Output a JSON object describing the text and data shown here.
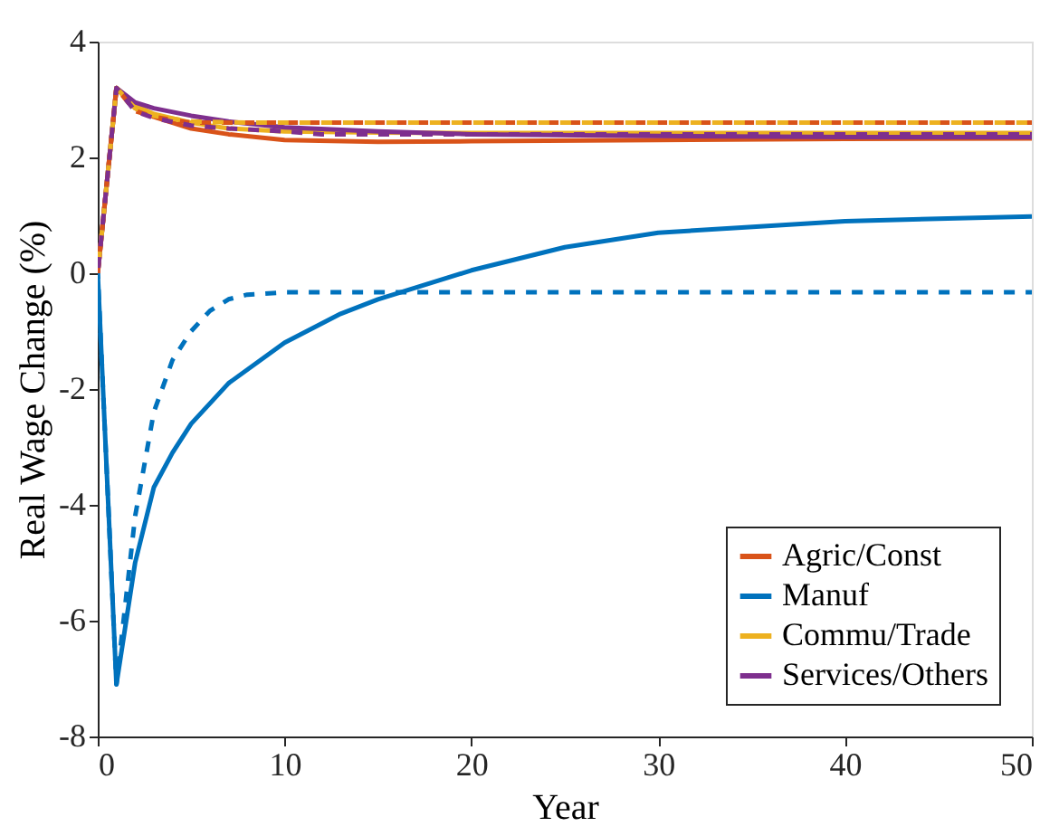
{
  "chart_data": {
    "type": "line",
    "xlabel": "Year",
    "ylabel": "Real Wage Change (%)",
    "xlim": [
      0,
      50
    ],
    "ylim": [
      -8,
      4
    ],
    "xticks": [
      0,
      10,
      20,
      30,
      40,
      50
    ],
    "yticks": [
      -8,
      -6,
      -4,
      -2,
      0,
      2,
      4
    ],
    "grid": false,
    "legend": "bottom right",
    "series": [
      {
        "name": "Agric/Const",
        "color": "#d95319",
        "line_style": "solid",
        "x": [
          0,
          1,
          2,
          3,
          5,
          7,
          10,
          15,
          20,
          30,
          40,
          50
        ],
        "values": [
          0,
          3.2,
          2.85,
          2.7,
          2.5,
          2.4,
          2.3,
          2.27,
          2.28,
          2.3,
          2.32,
          2.33
        ]
      },
      {
        "name": "Manuf",
        "color": "#0072bd",
        "line_style": "solid",
        "x": [
          0,
          1,
          2,
          3,
          4,
          5,
          7,
          10,
          13,
          15,
          20,
          25,
          30,
          40,
          50
        ],
        "values": [
          0,
          -7.1,
          -5.0,
          -3.7,
          -3.1,
          -2.6,
          -1.9,
          -1.2,
          -0.7,
          -0.45,
          0.05,
          0.45,
          0.7,
          0.9,
          0.98
        ]
      },
      {
        "name": "Commu/Trade",
        "color": "#edb120",
        "line_style": "solid",
        "x": [
          0,
          1,
          2,
          3,
          5,
          7,
          10,
          15,
          20,
          30,
          40,
          50
        ],
        "values": [
          0,
          3.2,
          2.9,
          2.75,
          2.6,
          2.5,
          2.45,
          2.43,
          2.42,
          2.42,
          2.42,
          2.42
        ]
      },
      {
        "name": "Services/Others",
        "color": "#7e2f8e",
        "line_style": "solid",
        "x": [
          0,
          1,
          2,
          3,
          5,
          7,
          10,
          15,
          20,
          30,
          40,
          50
        ],
        "values": [
          0,
          3.2,
          2.95,
          2.85,
          2.72,
          2.62,
          2.52,
          2.45,
          2.4,
          2.37,
          2.35,
          2.35
        ]
      },
      {
        "color": "#d95319",
        "line_style": "dashed",
        "x": [
          0,
          1,
          2,
          3,
          5,
          8,
          10,
          20,
          30,
          40,
          50
        ],
        "values": [
          0,
          3.2,
          2.8,
          2.7,
          2.6,
          2.6,
          2.6,
          2.6,
          2.6,
          2.6,
          2.6
        ]
      },
      {
        "color": "#0072bd",
        "line_style": "dashed",
        "x": [
          0,
          1,
          2,
          3,
          4,
          5,
          6,
          7,
          8,
          10,
          20,
          30,
          40,
          50
        ],
        "values": [
          0,
          -7.1,
          -4.2,
          -2.4,
          -1.5,
          -1.0,
          -0.65,
          -0.45,
          -0.37,
          -0.33,
          -0.33,
          -0.33,
          -0.33,
          -0.33
        ]
      },
      {
        "color": "#edb120",
        "line_style": "dashed",
        "x": [
          0,
          1,
          2,
          3,
          5,
          8,
          10,
          20,
          30,
          40,
          50
        ],
        "values": [
          0,
          3.2,
          2.85,
          2.72,
          2.62,
          2.6,
          2.6,
          2.6,
          2.6,
          2.6,
          2.6
        ]
      },
      {
        "color": "#7e2f8e",
        "line_style": "dashed",
        "x": [
          0,
          1,
          2,
          3,
          5,
          7,
          10,
          12,
          20,
          30,
          40,
          50
        ],
        "values": [
          0,
          3.2,
          2.8,
          2.68,
          2.55,
          2.5,
          2.45,
          2.4,
          2.4,
          2.4,
          2.4,
          2.4
        ]
      }
    ]
  }
}
